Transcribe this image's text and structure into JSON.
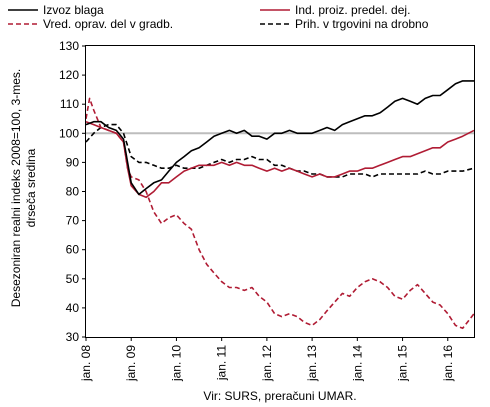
{
  "chart_data": {
    "type": "line",
    "ylabel_line1": "Desezoniran realni indeks 2008=100, 3-mes.",
    "ylabel_line2": "drseča sredina",
    "source": "Vir: SURS, preračuni UMAR.",
    "ylim": [
      30,
      130
    ],
    "yticks": [
      30,
      40,
      50,
      60,
      70,
      80,
      90,
      100,
      110,
      120,
      130
    ],
    "xlim": [
      2008.0,
      2016.58
    ],
    "xticks": [
      {
        "x": 2008.0,
        "label": "jan. 08"
      },
      {
        "x": 2009.0,
        "label": "jan. 09"
      },
      {
        "x": 2010.0,
        "label": "jan. 10"
      },
      {
        "x": 2011.0,
        "label": "jan. 11"
      },
      {
        "x": 2012.0,
        "label": "jan. 12"
      },
      {
        "x": 2013.0,
        "label": "jan. 13"
      },
      {
        "x": 2014.0,
        "label": "jan. 14"
      },
      {
        "x": 2015.0,
        "label": "jan. 15"
      },
      {
        "x": 2016.0,
        "label": "jan. 16"
      }
    ],
    "reference_line": 100,
    "grid": false,
    "legend_position": "top",
    "series": [
      {
        "name": "Izvoz blaga",
        "color": "#000000",
        "dash": "solid",
        "points": [
          [
            2008.0,
            103
          ],
          [
            2008.17,
            104
          ],
          [
            2008.33,
            104
          ],
          [
            2008.5,
            102
          ],
          [
            2008.67,
            101
          ],
          [
            2008.83,
            98
          ],
          [
            2008.92,
            90
          ],
          [
            2009.0,
            83
          ],
          [
            2009.17,
            79
          ],
          [
            2009.33,
            81
          ],
          [
            2009.5,
            83
          ],
          [
            2009.67,
            84
          ],
          [
            2009.83,
            87
          ],
          [
            2010.0,
            90
          ],
          [
            2010.17,
            92
          ],
          [
            2010.33,
            94
          ],
          [
            2010.5,
            95
          ],
          [
            2010.67,
            97
          ],
          [
            2010.83,
            99
          ],
          [
            2011.0,
            100
          ],
          [
            2011.17,
            101
          ],
          [
            2011.33,
            100
          ],
          [
            2011.5,
            101
          ],
          [
            2011.67,
            99
          ],
          [
            2011.83,
            99
          ],
          [
            2012.0,
            98
          ],
          [
            2012.17,
            100
          ],
          [
            2012.33,
            100
          ],
          [
            2012.5,
            101
          ],
          [
            2012.67,
            100
          ],
          [
            2012.83,
            100
          ],
          [
            2013.0,
            100
          ],
          [
            2013.17,
            101
          ],
          [
            2013.33,
            102
          ],
          [
            2013.5,
            101
          ],
          [
            2013.67,
            103
          ],
          [
            2013.83,
            104
          ],
          [
            2014.0,
            105
          ],
          [
            2014.17,
            106
          ],
          [
            2014.33,
            106
          ],
          [
            2014.5,
            107
          ],
          [
            2014.67,
            109
          ],
          [
            2014.83,
            111
          ],
          [
            2015.0,
            112
          ],
          [
            2015.17,
            111
          ],
          [
            2015.33,
            110
          ],
          [
            2015.5,
            112
          ],
          [
            2015.67,
            113
          ],
          [
            2015.83,
            113
          ],
          [
            2016.0,
            115
          ],
          [
            2016.17,
            117
          ],
          [
            2016.33,
            118
          ],
          [
            2016.58,
            118
          ]
        ]
      },
      {
        "name": "Ind. proiz. predel. dej.",
        "color": "#b01c34",
        "dash": "solid",
        "points": [
          [
            2008.0,
            104
          ],
          [
            2008.17,
            103
          ],
          [
            2008.33,
            102
          ],
          [
            2008.5,
            101
          ],
          [
            2008.67,
            100
          ],
          [
            2008.83,
            97
          ],
          [
            2008.92,
            88
          ],
          [
            2009.0,
            82
          ],
          [
            2009.17,
            79
          ],
          [
            2009.33,
            78
          ],
          [
            2009.5,
            80
          ],
          [
            2009.67,
            83
          ],
          [
            2009.83,
            83
          ],
          [
            2010.0,
            85
          ],
          [
            2010.17,
            87
          ],
          [
            2010.33,
            88
          ],
          [
            2010.5,
            89
          ],
          [
            2010.67,
            89
          ],
          [
            2010.83,
            89
          ],
          [
            2011.0,
            90
          ],
          [
            2011.17,
            89
          ],
          [
            2011.33,
            90
          ],
          [
            2011.5,
            89
          ],
          [
            2011.67,
            89
          ],
          [
            2011.83,
            88
          ],
          [
            2012.0,
            87
          ],
          [
            2012.17,
            88
          ],
          [
            2012.33,
            87
          ],
          [
            2012.5,
            88
          ],
          [
            2012.67,
            87
          ],
          [
            2012.83,
            86
          ],
          [
            2013.0,
            85
          ],
          [
            2013.17,
            86
          ],
          [
            2013.33,
            85
          ],
          [
            2013.5,
            85
          ],
          [
            2013.67,
            86
          ],
          [
            2013.83,
            87
          ],
          [
            2014.0,
            87
          ],
          [
            2014.17,
            88
          ],
          [
            2014.33,
            88
          ],
          [
            2014.5,
            89
          ],
          [
            2014.67,
            90
          ],
          [
            2014.83,
            91
          ],
          [
            2015.0,
            92
          ],
          [
            2015.17,
            92
          ],
          [
            2015.33,
            93
          ],
          [
            2015.5,
            94
          ],
          [
            2015.67,
            95
          ],
          [
            2015.83,
            95
          ],
          [
            2016.0,
            97
          ],
          [
            2016.17,
            98
          ],
          [
            2016.33,
            99
          ],
          [
            2016.58,
            101
          ]
        ]
      },
      {
        "name": "Vred. oprav. del v gradb.",
        "color": "#b01c34",
        "dash": "dashed",
        "points": [
          [
            2008.0,
            105
          ],
          [
            2008.08,
            112
          ],
          [
            2008.17,
            108
          ],
          [
            2008.33,
            102
          ],
          [
            2008.5,
            101
          ],
          [
            2008.67,
            100
          ],
          [
            2008.83,
            97
          ],
          [
            2008.92,
            88
          ],
          [
            2009.0,
            85
          ],
          [
            2009.17,
            84
          ],
          [
            2009.33,
            80
          ],
          [
            2009.5,
            73
          ],
          [
            2009.67,
            69
          ],
          [
            2009.83,
            71
          ],
          [
            2010.0,
            72
          ],
          [
            2010.17,
            69
          ],
          [
            2010.33,
            67
          ],
          [
            2010.5,
            60
          ],
          [
            2010.67,
            55
          ],
          [
            2010.83,
            52
          ],
          [
            2011.0,
            49
          ],
          [
            2011.17,
            47
          ],
          [
            2011.33,
            47
          ],
          [
            2011.5,
            46
          ],
          [
            2011.67,
            47
          ],
          [
            2011.83,
            44
          ],
          [
            2012.0,
            42
          ],
          [
            2012.17,
            38
          ],
          [
            2012.33,
            37
          ],
          [
            2012.5,
            38
          ],
          [
            2012.67,
            37
          ],
          [
            2012.83,
            35
          ],
          [
            2013.0,
            34
          ],
          [
            2013.17,
            36
          ],
          [
            2013.33,
            39
          ],
          [
            2013.5,
            42
          ],
          [
            2013.67,
            45
          ],
          [
            2013.83,
            44
          ],
          [
            2014.0,
            47
          ],
          [
            2014.17,
            49
          ],
          [
            2014.33,
            50
          ],
          [
            2014.5,
            49
          ],
          [
            2014.67,
            47
          ],
          [
            2014.83,
            44
          ],
          [
            2015.0,
            43
          ],
          [
            2015.17,
            46
          ],
          [
            2015.33,
            48
          ],
          [
            2015.5,
            45
          ],
          [
            2015.67,
            42
          ],
          [
            2015.83,
            41
          ],
          [
            2016.0,
            38
          ],
          [
            2016.17,
            34
          ],
          [
            2016.33,
            33
          ],
          [
            2016.58,
            38
          ]
        ]
      },
      {
        "name": "Prih. v trgovini na drobno",
        "color": "#000000",
        "dash": "dashed",
        "points": [
          [
            2008.0,
            97
          ],
          [
            2008.17,
            100
          ],
          [
            2008.33,
            102
          ],
          [
            2008.5,
            103
          ],
          [
            2008.67,
            103
          ],
          [
            2008.83,
            100
          ],
          [
            2009.0,
            92
          ],
          [
            2009.17,
            90
          ],
          [
            2009.33,
            90
          ],
          [
            2009.5,
            89
          ],
          [
            2009.67,
            88
          ],
          [
            2009.83,
            88
          ],
          [
            2010.0,
            89
          ],
          [
            2010.17,
            88
          ],
          [
            2010.33,
            88
          ],
          [
            2010.5,
            88
          ],
          [
            2010.67,
            89
          ],
          [
            2010.83,
            90
          ],
          [
            2011.0,
            91
          ],
          [
            2011.17,
            90
          ],
          [
            2011.33,
            91
          ],
          [
            2011.5,
            91
          ],
          [
            2011.67,
            92
          ],
          [
            2011.83,
            91
          ],
          [
            2012.0,
            91
          ],
          [
            2012.17,
            89
          ],
          [
            2012.33,
            89
          ],
          [
            2012.5,
            88
          ],
          [
            2012.67,
            87
          ],
          [
            2012.83,
            87
          ],
          [
            2013.0,
            86
          ],
          [
            2013.17,
            86
          ],
          [
            2013.33,
            85
          ],
          [
            2013.5,
            85
          ],
          [
            2013.67,
            85
          ],
          [
            2013.83,
            86
          ],
          [
            2014.0,
            86
          ],
          [
            2014.17,
            86
          ],
          [
            2014.33,
            85
          ],
          [
            2014.5,
            86
          ],
          [
            2014.67,
            86
          ],
          [
            2014.83,
            86
          ],
          [
            2015.0,
            86
          ],
          [
            2015.17,
            86
          ],
          [
            2015.33,
            86
          ],
          [
            2015.5,
            87
          ],
          [
            2015.67,
            86
          ],
          [
            2015.83,
            86
          ],
          [
            2016.0,
            87
          ],
          [
            2016.17,
            87
          ],
          [
            2016.33,
            87
          ],
          [
            2016.58,
            88
          ]
        ]
      }
    ]
  }
}
